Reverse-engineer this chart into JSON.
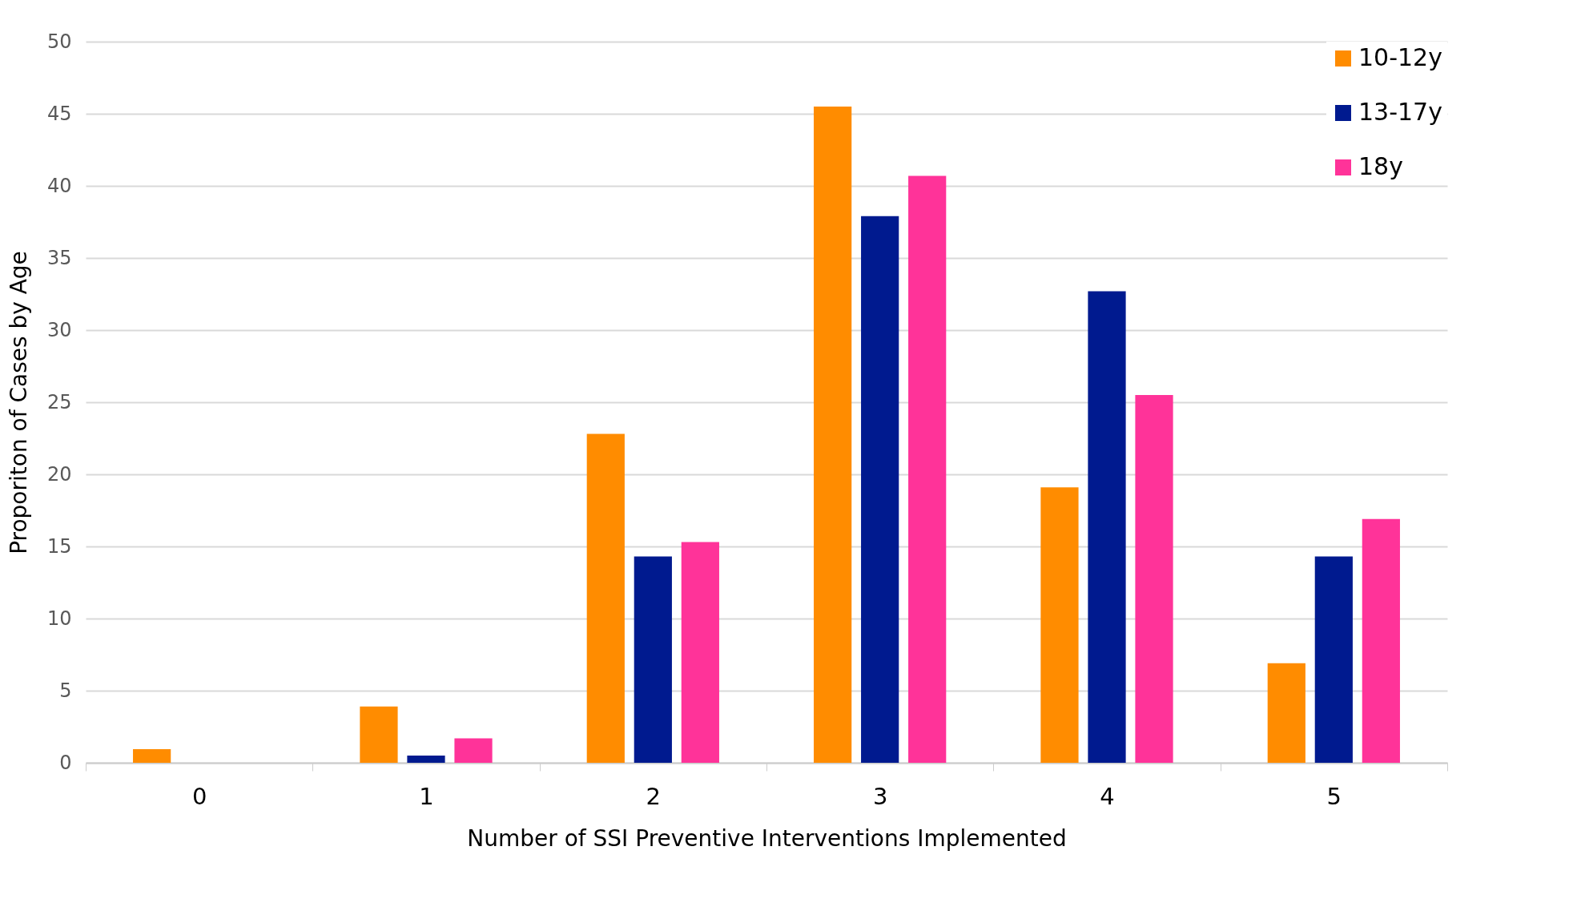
{
  "chart_data": {
    "type": "bar",
    "xlabel": "Number of SSI Preventive Interventions Implemented",
    "ylabel": "Proporiton of Cases by Age",
    "categories": [
      "0",
      "1",
      "2",
      "3",
      "4",
      "5"
    ],
    "series": [
      {
        "name": "10-12y",
        "color": "#ff8c00",
        "values": [
          0.95,
          3.9,
          22.8,
          45.5,
          19.1,
          6.9
        ]
      },
      {
        "name": "13-17y",
        "color": "#001a8f",
        "values": [
          0,
          0.5,
          14.3,
          37.9,
          32.7,
          14.3
        ]
      },
      {
        "name": "18y",
        "color": "#ff3399",
        "values": [
          0,
          1.7,
          15.3,
          40.7,
          25.5,
          16.9
        ]
      }
    ],
    "ylim": [
      0,
      50
    ],
    "yticks": [
      0,
      5,
      10,
      15,
      20,
      25,
      30,
      35,
      40,
      45,
      50
    ],
    "grid": "y",
    "legend": "top right"
  }
}
